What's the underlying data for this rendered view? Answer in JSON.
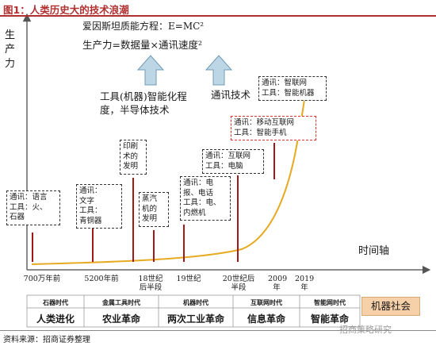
{
  "title": "图1：人类历史大的技术浪潮",
  "y_axis_label": "生产力",
  "x_axis_label": "时间轴",
  "formula_1": "爱因斯坦质能方程：E=MC²",
  "formula_2": "生产力=数据量×通讯速度²",
  "note_tools": "工具(机器)智能化程度，半导体技术",
  "note_comm": "通讯技术",
  "boxes": [
    {
      "lines": [
        "通讯：语言",
        "工具：火、",
        "石器"
      ],
      "red": false
    },
    {
      "lines": [
        "通讯：",
        "文字",
        "工具：",
        "青铜器"
      ],
      "red": false
    },
    {
      "lines": [
        "印刷",
        "术的",
        "发明"
      ],
      "red": false
    },
    {
      "lines": [
        "蒸汽",
        "机的",
        "发明"
      ],
      "red": false
    },
    {
      "lines": [
        "通讯：电",
        "报、电话",
        "工具：电、",
        "内燃机"
      ],
      "red": false
    },
    {
      "lines": [
        "通讯：互联网",
        "工具：电脑"
      ],
      "red": false
    },
    {
      "lines": [
        "通讯：移动互联网",
        "工具：智能手机"
      ],
      "red": true
    },
    {
      "lines": [
        "通讯：智联网",
        "工具：智能机器"
      ],
      "red": false
    }
  ],
  "ticks": [
    {
      "label": "700万年前"
    },
    {
      "label": "5200年前"
    },
    {
      "label": "18世纪后半段"
    },
    {
      "label": "19世纪"
    },
    {
      "label": "20世纪后半段"
    },
    {
      "label": "2009年"
    },
    {
      "label": "2019年"
    }
  ],
  "eras": [
    "石器时代",
    "金属工具时代",
    "机器时代",
    "互联网时代",
    "智能网时代"
  ],
  "revolutions": [
    "人类进化",
    "农业革命",
    "两次工业革命",
    "信息革命",
    "智能革命"
  ],
  "future_label": "机器社会",
  "source": "资料来源：招商证券整理",
  "watermark": "招商策略研究",
  "colors": {
    "title": "#b03030",
    "arrow_fill": "#bcd6e6",
    "arrow_stroke": "#6f9cb4",
    "curve": "#e6aa22",
    "stem": "#a01818",
    "future_bg": "#f6d0a8",
    "red_box": "#e03030"
  }
}
